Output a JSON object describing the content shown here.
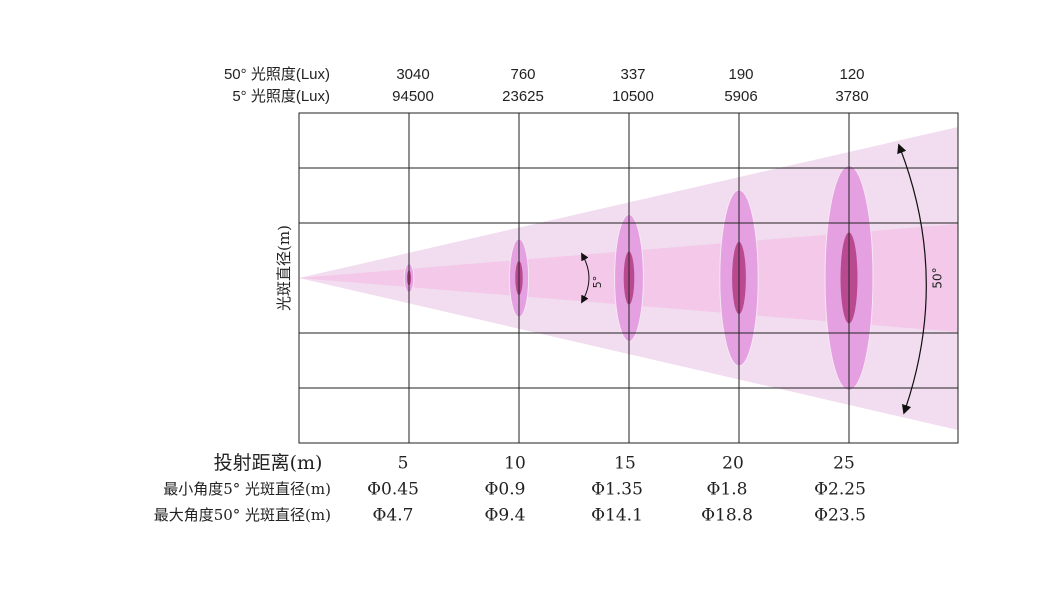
{
  "header": {
    "rows": [
      {
        "label": "50° 光照度(Lux)",
        "values": [
          3040,
          760,
          337,
          190,
          120
        ]
      },
      {
        "label": "5° 光照度(Lux)",
        "values": [
          94500,
          23625,
          10500,
          5906,
          3780
        ]
      }
    ]
  },
  "y_axis_label": "光斑直径(m)",
  "distance": {
    "label": "投射距离(m)",
    "values": [
      5,
      10,
      15,
      20,
      25
    ]
  },
  "spot_rows": [
    {
      "label": "最小角度5° 光斑直径(m)",
      "values": [
        "Φ0.45",
        "Φ0.9",
        "Φ1.35",
        "Φ1.8",
        "Φ2.25"
      ]
    },
    {
      "label": "最大角度50° 光斑直径(m)",
      "values": [
        "Φ4.7",
        "Φ9.4",
        "Φ14.1",
        "Φ18.8",
        "Φ23.5"
      ]
    }
  ],
  "annotations": {
    "narrow_angle": "5°",
    "wide_angle": "50°"
  }
}
